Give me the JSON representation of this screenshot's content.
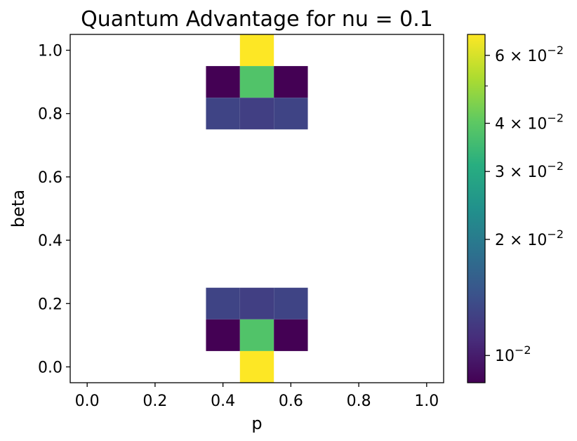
{
  "chart_data": {
    "type": "heatmap",
    "title": "Quantum Advantage for nu = 0.1",
    "xlabel": "p",
    "ylabel": "beta",
    "xlim": [
      -0.05,
      1.05
    ],
    "ylim": [
      -0.05,
      1.05
    ],
    "xticks": [
      "0.0",
      "0.2",
      "0.4",
      "0.6",
      "0.8",
      "1.0"
    ],
    "yticks": [
      "0.0",
      "0.2",
      "0.4",
      "0.6",
      "0.8",
      "1.0"
    ],
    "grid": false,
    "cell_size": 0.1,
    "cells": [
      {
        "p": 0.5,
        "beta": 1.0,
        "value": 0.068
      },
      {
        "p": 0.4,
        "beta": 0.9,
        "value": 0.0085
      },
      {
        "p": 0.5,
        "beta": 0.9,
        "value": 0.038
      },
      {
        "p": 0.6,
        "beta": 0.9,
        "value": 0.0085
      },
      {
        "p": 0.4,
        "beta": 0.8,
        "value": 0.013
      },
      {
        "p": 0.5,
        "beta": 0.8,
        "value": 0.0125
      },
      {
        "p": 0.6,
        "beta": 0.8,
        "value": 0.013
      },
      {
        "p": 0.4,
        "beta": 0.2,
        "value": 0.013
      },
      {
        "p": 0.5,
        "beta": 0.2,
        "value": 0.0125
      },
      {
        "p": 0.6,
        "beta": 0.2,
        "value": 0.013
      },
      {
        "p": 0.4,
        "beta": 0.1,
        "value": 0.0085
      },
      {
        "p": 0.5,
        "beta": 0.1,
        "value": 0.038
      },
      {
        "p": 0.6,
        "beta": 0.1,
        "value": 0.0085
      },
      {
        "p": 0.5,
        "beta": 0.0,
        "value": 0.068
      }
    ],
    "colorbar": {
      "scale": "log",
      "colormap": "viridis",
      "range": [
        0.0085,
        0.068
      ],
      "ticks": [
        {
          "value": 0.01,
          "mantissa": "",
          "exponent": "−2"
        },
        {
          "value": 0.02,
          "mantissa": "2 × ",
          "exponent": "−2"
        },
        {
          "value": 0.03,
          "mantissa": "3 × ",
          "exponent": "−2"
        },
        {
          "value": 0.04,
          "mantissa": "4 × ",
          "exponent": "−2"
        },
        {
          "value": 0.06,
          "mantissa": "6 × ",
          "exponent": "−2"
        }
      ],
      "minor_ticks": [
        0.05
      ]
    }
  }
}
